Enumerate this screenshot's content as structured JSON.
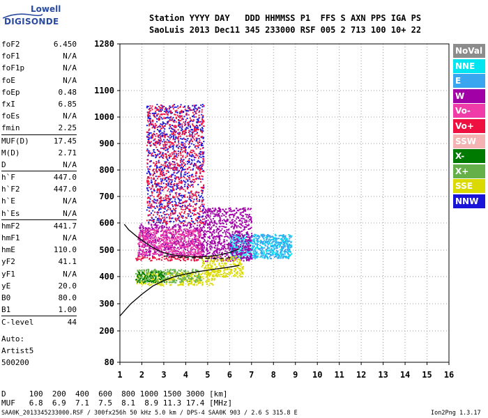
{
  "logo": {
    "line1": "Lowell",
    "line2": "DIGISONDE"
  },
  "header": {
    "line1": "Station YYYY DAY   DDD HHMMSS P1  FFS S AXN PPS IGA PS",
    "line2": "SaoLuis 2013 Dec11 345 233000 RSF 005 2 713 100 10+ 22"
  },
  "params": [
    {
      "name": "foF2",
      "value": "6.450",
      "sep": false
    },
    {
      "name": "foF1",
      "value": "N/A",
      "sep": false
    },
    {
      "name": "foF1p",
      "value": "N/A",
      "sep": false
    },
    {
      "name": "foE",
      "value": "N/A",
      "sep": false
    },
    {
      "name": "foEp",
      "value": "0.48",
      "sep": false
    },
    {
      "name": "fxI",
      "value": "6.85",
      "sep": false
    },
    {
      "name": "foEs",
      "value": "N/A",
      "sep": false
    },
    {
      "name": "fmin",
      "value": "2.25",
      "sep": false
    },
    {
      "name": "MUF(D)",
      "value": "17.45",
      "sep": true
    },
    {
      "name": "M(D)",
      "value": "2.71",
      "sep": false
    },
    {
      "name": "D",
      "value": "N/A",
      "sep": false
    },
    {
      "name": "h`F",
      "value": "447.0",
      "sep": true
    },
    {
      "name": "h`F2",
      "value": "447.0",
      "sep": false
    },
    {
      "name": "h`E",
      "value": "N/A",
      "sep": false
    },
    {
      "name": "h`Es",
      "value": "N/A",
      "sep": false
    },
    {
      "name": "hmF2",
      "value": "441.7",
      "sep": true
    },
    {
      "name": "hmF1",
      "value": "N/A",
      "sep": false
    },
    {
      "name": "hmE",
      "value": "110.0",
      "sep": false
    },
    {
      "name": "yF2",
      "value": "41.1",
      "sep": false
    },
    {
      "name": "yF1",
      "value": "N/A",
      "sep": false
    },
    {
      "name": "yE",
      "value": "20.0",
      "sep": false
    },
    {
      "name": "B0",
      "value": "80.0",
      "sep": false
    },
    {
      "name": "B1",
      "value": "1.00",
      "sep": false
    },
    {
      "name": "C-level",
      "value": "44",
      "sep": true
    }
  ],
  "auto": {
    "line1": "Auto:",
    "line2": "Artist5",
    "line3": "500200"
  },
  "legend": [
    {
      "label": "NoVal",
      "color": "#8c8c8c"
    },
    {
      "label": "NNE",
      "color": "#00e5f0"
    },
    {
      "label": "E",
      "color": "#3aa6ef"
    },
    {
      "label": "W",
      "color": "#a000a6"
    },
    {
      "label": "Vo-",
      "color": "#f03ca8"
    },
    {
      "label": "Vo+",
      "color": "#ee1040"
    },
    {
      "label": "SSW",
      "color": "#f4b2b2"
    },
    {
      "label": "X-",
      "color": "#007a00"
    },
    {
      "label": "X+",
      "color": "#66b04a"
    },
    {
      "label": "SSE",
      "color": "#dada00"
    },
    {
      "label": "NNW",
      "color": "#1a14d8"
    }
  ],
  "footer": {
    "line1": "D     100  200  400  600  800 1000 1500 3000 [km]",
    "line2": "MUF   6.8  6.9  7.1  7.5  8.1  8.9 11.3 17.4 [MHz]",
    "line3": "SAA0K_2013345233000.RSF / 300fx256h 50 kHz 5.0 km / DPS-4 SAA0K 903 / 2.6 S 315.8 E",
    "line4": "Ion2Png 1.3.17"
  },
  "chart_data": {
    "type": "scatter",
    "xlim": [
      1,
      16
    ],
    "ylim": [
      80,
      1280
    ],
    "x_ticks": [
      "1",
      "2",
      "3",
      "4",
      "5",
      "6",
      "7",
      "8",
      "9",
      "10",
      "11",
      "12",
      "13",
      "14",
      "15",
      "16"
    ],
    "y_ticks": [
      "80",
      "200",
      "300",
      "400",
      "500",
      "600",
      "700",
      "800",
      "900",
      "1000",
      "1100",
      "1280"
    ],
    "grid": true,
    "legend_position": "right",
    "trace_extraordinary": {
      "x": [
        1.2,
        1.4,
        1.8,
        2.2,
        2.6,
        3.0,
        3.4,
        3.8,
        4.2,
        4.6,
        5.0,
        5.4,
        5.8,
        6.1,
        6.3,
        6.45
      ],
      "y": [
        595,
        575,
        548,
        525,
        505,
        490,
        482,
        478,
        476,
        475,
        476,
        480,
        486,
        494,
        500,
        505
      ]
    },
    "trace_ordinary_dashed": {
      "x": [
        3.0,
        3.5,
        4.0,
        4.6,
        5.2,
        5.6,
        5.9,
        6.1
      ],
      "y": [
        478,
        474,
        472,
        470,
        468,
        468,
        470,
        474
      ]
    },
    "profile_curve": {
      "x": [
        1.0,
        1.5,
        2.0,
        2.5,
        3.0,
        3.5,
        4.0,
        4.5,
        5.0,
        5.5,
        6.0,
        6.3,
        6.45
      ],
      "y": [
        255,
        300,
        335,
        365,
        385,
        400,
        410,
        418,
        424,
        430,
        436,
        440,
        442
      ]
    },
    "point_clusters": [
      {
        "series": "SSE",
        "x_range": [
          1.7,
          5.3
        ],
        "y_range": [
          370,
          420
        ]
      },
      {
        "series": "Vo+",
        "x_range": [
          1.7,
          4.7
        ],
        "y_range": [
          462,
          480
        ]
      },
      {
        "series": "W",
        "x_range": [
          1.8,
          4.7
        ],
        "y_range": [
          480,
          600
        ]
      },
      {
        "series": "Vo-",
        "x_range": [
          1.8,
          4.7
        ],
        "y_range": [
          480,
          580
        ]
      },
      {
        "series": "X+",
        "x_range": [
          1.7,
          4.7
        ],
        "y_range": [
          380,
          430
        ]
      },
      {
        "series": "X-",
        "x_range": [
          1.7,
          3.0
        ],
        "y_range": [
          380,
          420
        ]
      },
      {
        "series": "NNE",
        "x_range": [
          6.0,
          8.8
        ],
        "y_range": [
          470,
          560
        ]
      },
      {
        "series": "E",
        "x_range": [
          6.0,
          8.8
        ],
        "y_range": [
          470,
          560
        ]
      },
      {
        "series": "W",
        "x_range": [
          4.7,
          7.0
        ],
        "y_range": [
          460,
          660
        ]
      },
      {
        "series": "SSE",
        "x_range": [
          4.7,
          6.6
        ],
        "y_range": [
          400,
          480
        ]
      },
      {
        "series": "NNW",
        "x_range": [
          2.2,
          4.8
        ],
        "y_range": [
          600,
          1050
        ]
      },
      {
        "series": "Vo+",
        "x_range": [
          2.2,
          4.8
        ],
        "y_range": [
          600,
          1050
        ]
      }
    ]
  }
}
